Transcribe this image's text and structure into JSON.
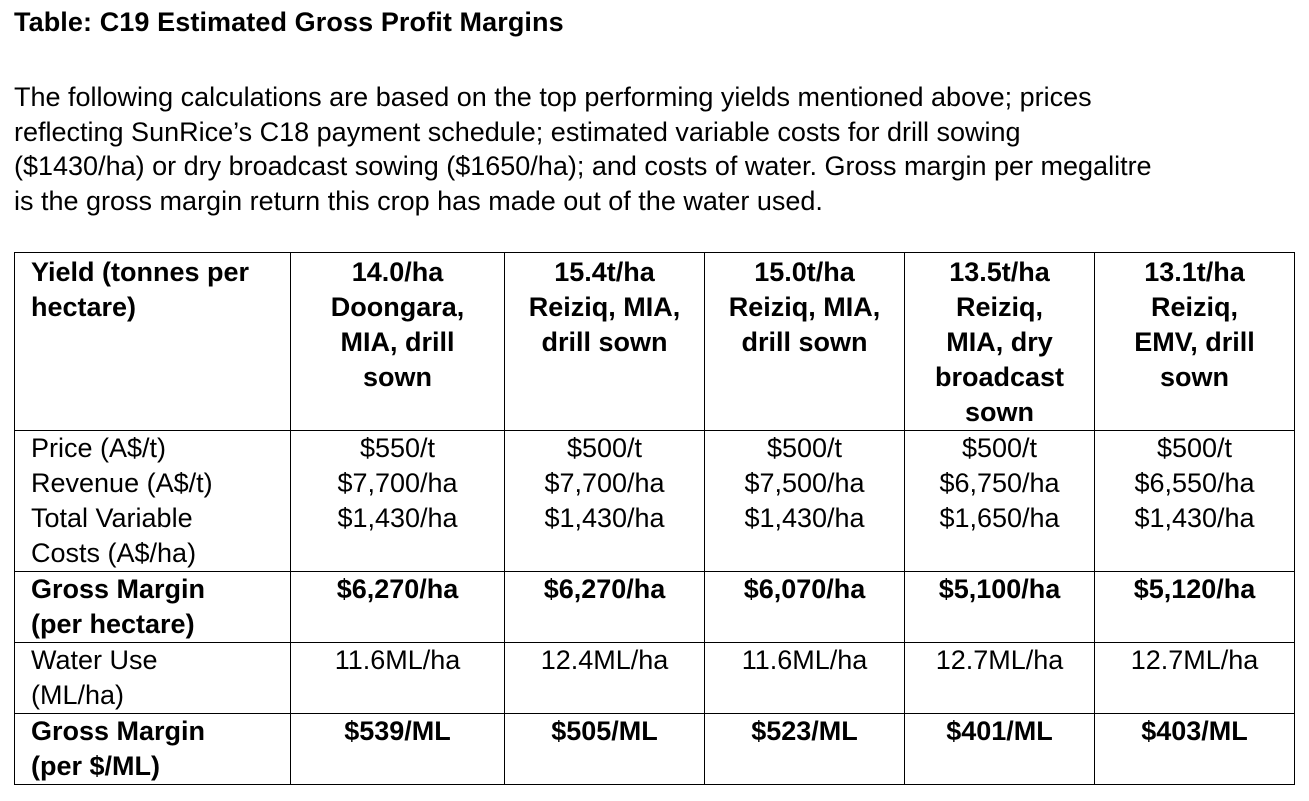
{
  "title": "Table: C19 Estimated Gross Profit Margins",
  "intro_lines": [
    "The following calculations are based on the top performing yields mentioned above; prices",
    "reflecting SunRice’s C18 payment schedule; estimated variable costs for drill sowing",
    "($1430/ha) or dry broadcast sowing ($1650/ha); and costs of water. Gross margin per megalitre",
    "is the gross margin return this crop has made out of the water used."
  ],
  "table": {
    "header_label": "Yield (tonnes per hectare)",
    "columns": [
      "14.0/ha Doongara, MIA, drill sown",
      "15.4t/ha Reiziq, MIA, drill sown",
      "15.0t/ha Reiziq, MIA, drill sown",
      "13.5t/ha Reiziq, MIA, dry broadcast sown",
      "13.1t/ha Reiziq, EMV, drill sown"
    ],
    "rows": {
      "price": {
        "label": "Price (A$/t)",
        "values": [
          "$550/t",
          "$500/t",
          "$500/t",
          "$500/t",
          "$500/t"
        ]
      },
      "revenue": {
        "label": "Revenue (A$/t)",
        "values": [
          "$7,700/ha",
          "$7,700/ha",
          "$7,500/ha",
          "$6,750/ha",
          "$6,550/ha"
        ]
      },
      "tvc": {
        "label": "Total Variable Costs (A$/ha)",
        "values": [
          "$1,430/ha",
          "$1,430/ha",
          "$1,430/ha",
          "$1,650/ha",
          "$1,430/ha"
        ]
      },
      "gm_ha": {
        "label": "Gross Margin (per hectare)",
        "values": [
          "$6,270/ha",
          "$6,270/ha",
          "$6,070/ha",
          "$5,100/ha",
          "$5,120/ha"
        ]
      },
      "water": {
        "label": "Water Use (ML/ha)",
        "values": [
          "11.6ML/ha",
          "12.4ML/ha",
          "11.6ML/ha",
          "12.7ML/ha",
          "12.7ML/ha"
        ]
      },
      "gm_ml": {
        "label": "Gross Margin (per $/ML)",
        "values": [
          "$539/ML",
          "$505/ML",
          "$523/ML",
          "$401/ML",
          "$403/ML"
        ]
      }
    }
  }
}
